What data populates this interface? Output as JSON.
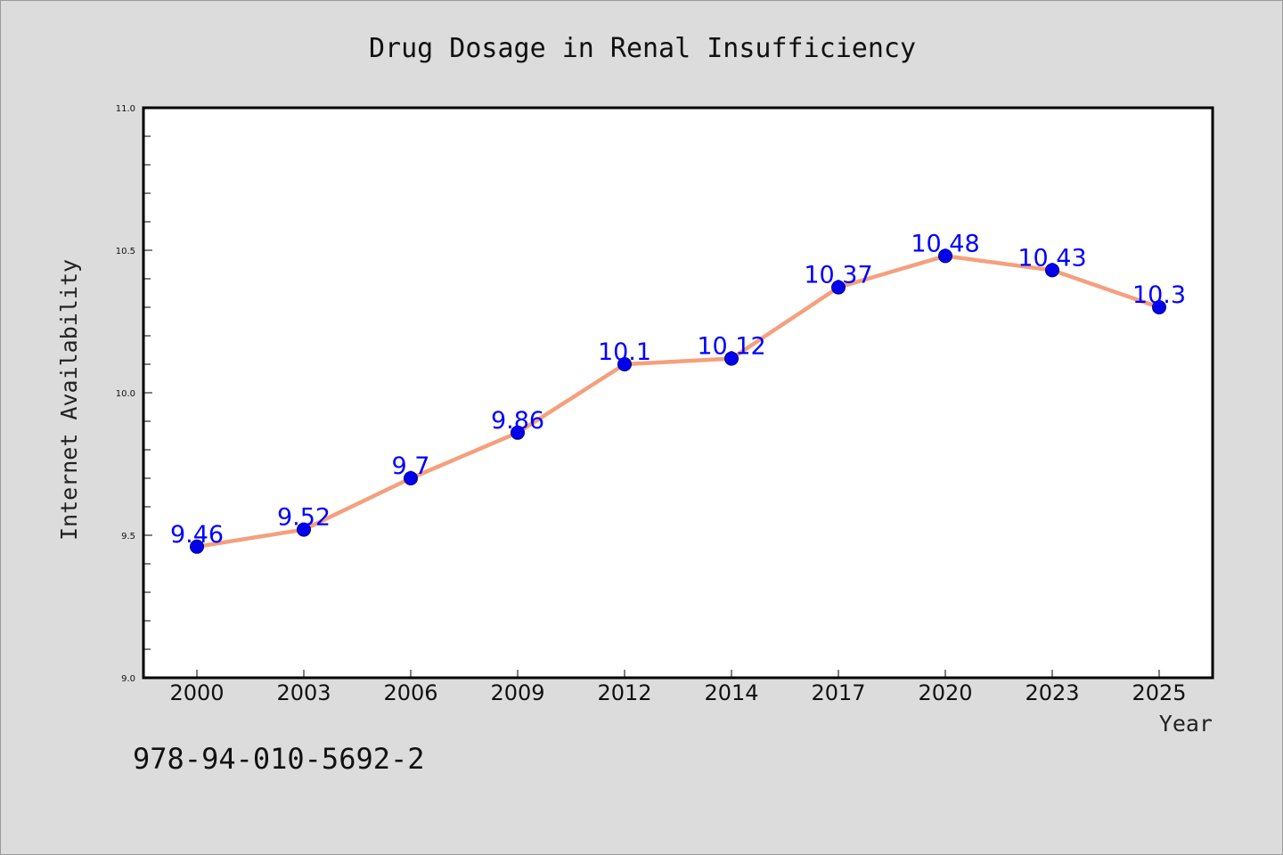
{
  "chart_data": {
    "type": "line",
    "title": "Drug Dosage in Renal Insufficiency",
    "xlabel": "Year",
    "ylabel": "Internet Availability",
    "categories": [
      "2000",
      "2003",
      "2006",
      "2009",
      "2012",
      "2014",
      "2017",
      "2020",
      "2023",
      "2025"
    ],
    "series": [
      {
        "values": [
          9.46,
          9.52,
          9.7,
          9.86,
          10.1,
          10.12,
          10.37,
          10.48,
          10.43,
          10.3
        ],
        "data_labels": [
          "9.46",
          "9.52",
          "9.7",
          "9.86",
          "10.1",
          "10.12",
          "10.37",
          "10.48",
          "10.43",
          "10.3"
        ]
      }
    ],
    "ylim": [
      9.0,
      11.0
    ],
    "yticks": [
      "9.0",
      "9.5",
      "10.0",
      "10.5",
      "11.0"
    ],
    "grid": false,
    "legend": "none",
    "colors": {
      "line": "#f4a07e",
      "marker_fill": "#0000ee",
      "marker_edge": "#000080",
      "data_label": "#0000ff",
      "axes_frame": "#000000",
      "plot_background": "#ffffff",
      "figure_background": "#dcdcdc"
    }
  },
  "footnote": "978-94-010-5692-2"
}
